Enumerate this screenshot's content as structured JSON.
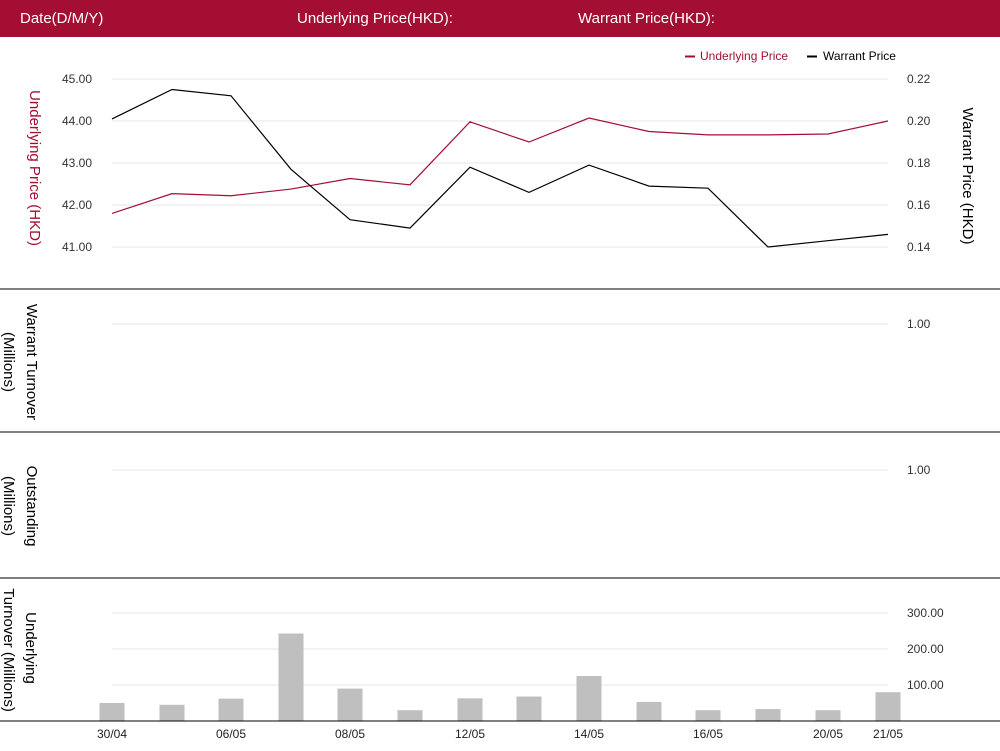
{
  "header": {
    "date_label": "Date(D/M/Y)",
    "underlying_price_label": "Underlying Price(HKD):",
    "warrant_price_label": "Warrant Price(HKD):"
  },
  "colors": {
    "header_bg": "#a50e33",
    "underlying": "#a50e33",
    "warrant": "#000000",
    "bars": "#bfbfbf",
    "grid": "#e6e6e6"
  },
  "chart_data": [
    {
      "type": "line",
      "legend": [
        "Underlying Price",
        "Warrant Price"
      ],
      "legend_position": "top-right",
      "left_axis_label": "Underlying Price (HKD)",
      "right_axis_label": "Warrant Price (HKD)",
      "left_ticks": [
        "45.00",
        "44.00",
        "43.00",
        "42.00",
        "41.00"
      ],
      "right_ticks": [
        "0.22",
        "0.20",
        "0.18",
        "0.16",
        "0.14"
      ],
      "left_range": [
        41,
        45
      ],
      "right_range": [
        0.14,
        0.22
      ],
      "series": [
        {
          "name": "Underlying Price",
          "axis": "left",
          "values": [
            41.8,
            42.27,
            42.22,
            42.38,
            42.63,
            42.48,
            43.98,
            43.5,
            44.07,
            43.75,
            43.67,
            43.67,
            43.69,
            44.0
          ]
        },
        {
          "name": "Warrant Price",
          "axis": "right",
          "values": [
            0.201,
            0.215,
            0.212,
            0.177,
            0.153,
            0.149,
            0.178,
            0.166,
            0.179,
            0.169,
            0.168,
            0.14,
            0.143,
            0.146
          ]
        }
      ]
    },
    {
      "type": "bar",
      "ylabel": "Warrant Turnover (Millions)",
      "ticks": [
        "1.00"
      ],
      "ylim": [
        0,
        1
      ],
      "values": []
    },
    {
      "type": "bar",
      "ylabel": "Outstanding (Millions)",
      "ticks": [
        "1.00"
      ],
      "ylim": [
        0,
        1
      ],
      "values": []
    },
    {
      "type": "bar",
      "ylabel": "Underlying Turnover (Millions)",
      "ticks": [
        "300.00",
        "200.00",
        "100.00"
      ],
      "ylim": [
        0,
        300
      ],
      "values": [
        50,
        45,
        62,
        243,
        90,
        30,
        63,
        68,
        125,
        53,
        30,
        33,
        30,
        80
      ]
    }
  ],
  "x_tick_labels": [
    "30/04",
    "06/05",
    "08/05",
    "12/05",
    "14/05",
    "16/05",
    "20/05",
    "21/05"
  ]
}
